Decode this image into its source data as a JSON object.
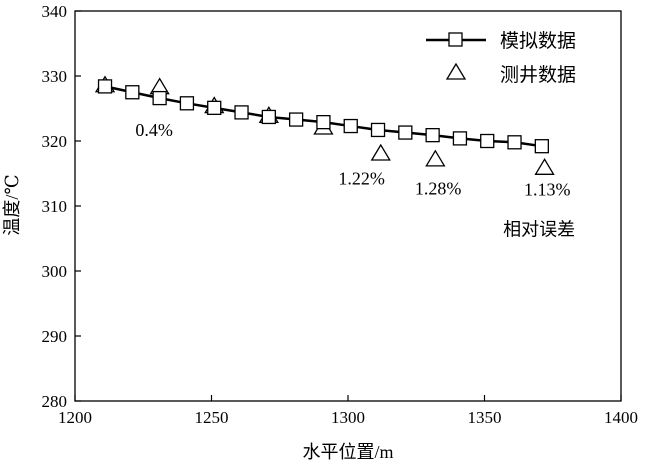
{
  "chart_data": {
    "type": "line",
    "xlabel": "水平位置/m",
    "ylabel": "温度/℃",
    "xlim": [
      1200,
      1400
    ],
    "ylim": [
      280,
      340
    ],
    "xticks": [
      1200,
      1250,
      1300,
      1350,
      1400
    ],
    "yticks": [
      280,
      290,
      300,
      310,
      320,
      330,
      340
    ],
    "grid": false,
    "legend_position": "top-right",
    "series": [
      {
        "name": "模拟数据",
        "marker": "square",
        "line": true,
        "x": [
          1211,
          1221,
          1231,
          1241,
          1251,
          1261,
          1271,
          1281,
          1291,
          1301,
          1311,
          1321,
          1331,
          1341,
          1351,
          1361,
          1371
        ],
        "y": [
          328.4,
          327.5,
          326.6,
          325.8,
          325.1,
          324.4,
          323.7,
          323.3,
          322.9,
          322.3,
          321.7,
          321.3,
          320.9,
          320.4,
          320.0,
          319.8,
          319.2
        ]
      },
      {
        "name": "测井数据",
        "marker": "triangle",
        "line": false,
        "x": [
          1211,
          1231,
          1251,
          1271,
          1291,
          1312,
          1332,
          1372
        ],
        "y": [
          328.5,
          328.2,
          325.3,
          323.8,
          322.0,
          318.0,
          317.1,
          315.8
        ]
      }
    ],
    "annotations": [
      {
        "text": "0.4%",
        "x": 1229,
        "y": 320.8
      },
      {
        "text": "1.22%",
        "x": 1305,
        "y": 313.3
      },
      {
        "text": "1.28%",
        "x": 1333,
        "y": 311.8
      },
      {
        "text": "1.13%",
        "x": 1373,
        "y": 311.6
      },
      {
        "text": "相对误差",
        "x": 1370,
        "y": 305.5
      }
    ]
  }
}
